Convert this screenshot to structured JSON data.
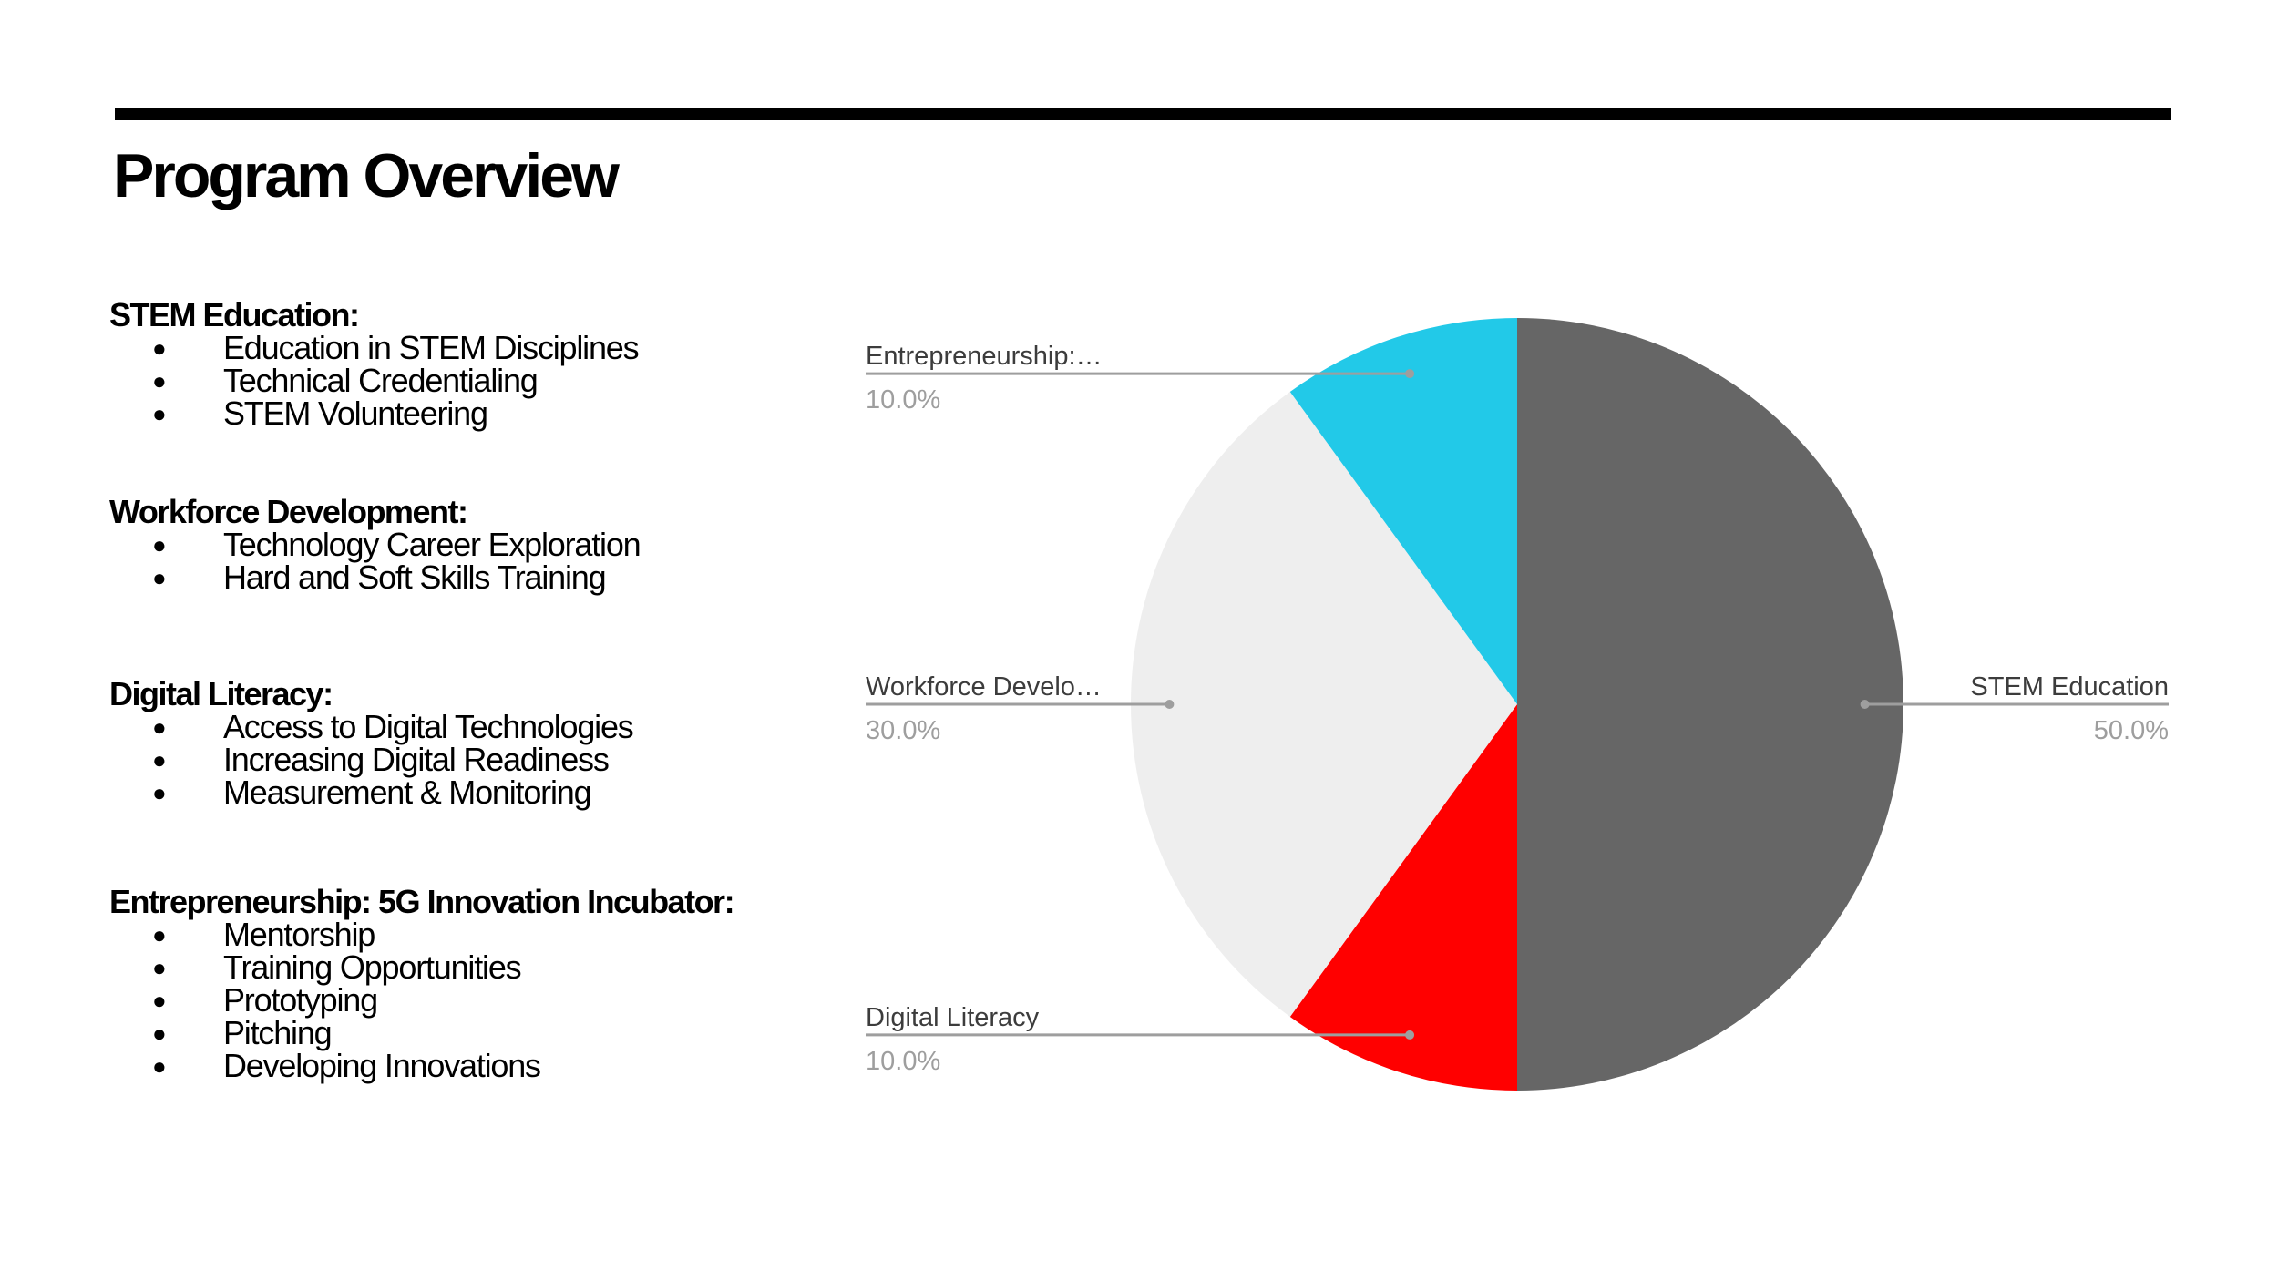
{
  "page": {
    "title": "Program Overview"
  },
  "sections": [
    {
      "heading": "STEM Education:",
      "items": [
        "Education in STEM Disciplines",
        "Technical Credentialing",
        "STEM Volunteering"
      ]
    },
    {
      "heading": "Workforce Development:",
      "items": [
        "Technology Career Exploration",
        "Hard and Soft Skills Training"
      ]
    },
    {
      "heading": "Digital Literacy:",
      "items": [
        "Access to Digital Technologies",
        "Increasing Digital Readiness",
        "Measurement & Monitoring"
      ]
    },
    {
      "heading": "Entrepreneurship: 5G Innovation Incubator:",
      "items": [
        "Mentorship",
        "Training Opportunities",
        "Prototyping",
        "Pitching",
        "Developing Innovations"
      ]
    }
  ],
  "bullet_glyph": "●",
  "chart_data": {
    "type": "pie",
    "start_angle_deg": 0,
    "direction": "clockwise",
    "slices": [
      {
        "label": "STEM Education",
        "value": 50.0,
        "display_label": "STEM Education",
        "display_value": "50.0%",
        "color": "#666666"
      },
      {
        "label": "Digital Literacy",
        "value": 10.0,
        "display_label": "Digital Literacy",
        "display_value": "10.0%",
        "color": "#ff0000"
      },
      {
        "label": "Workforce Development",
        "value": 30.0,
        "display_label": "Workforce Develo…",
        "display_value": "30.0%",
        "color": "#eeeeee"
      },
      {
        "label": "Entrepreneurship",
        "value": 10.0,
        "display_label": "Entrepreneurship:…",
        "display_value": "10.0%",
        "color": "#22c9e8"
      }
    ],
    "leader_line_color": "#9e9e9e",
    "legend": "none"
  }
}
